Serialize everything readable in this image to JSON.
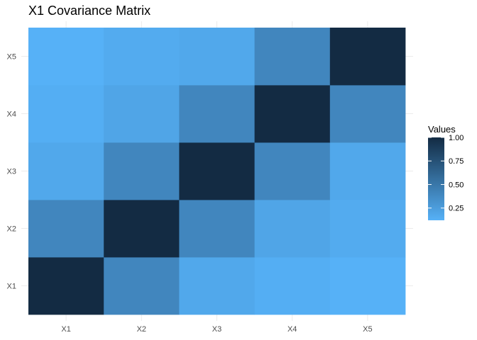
{
  "chart_data": {
    "type": "heatmap",
    "title": "X1 Covariance Matrix",
    "xlabel": "",
    "ylabel": "",
    "x_categories": [
      "X1",
      "X2",
      "X3",
      "X4",
      "X5"
    ],
    "y_categories": [
      "X1",
      "X2",
      "X3",
      "X4",
      "X5"
    ],
    "values": [
      [
        1.0,
        0.4,
        0.18,
        0.14,
        0.12
      ],
      [
        0.4,
        1.0,
        0.4,
        0.2,
        0.16
      ],
      [
        0.18,
        0.4,
        1.0,
        0.4,
        0.18
      ],
      [
        0.14,
        0.2,
        0.4,
        1.0,
        0.4
      ],
      [
        0.12,
        0.16,
        0.18,
        0.4,
        1.0
      ]
    ],
    "legend": {
      "title": "Values",
      "ticks": [
        "1.00",
        "0.75",
        "0.50",
        "0.25"
      ],
      "tick_values": [
        1.0,
        0.75,
        0.5,
        0.25
      ],
      "placement": "right"
    },
    "color_scale": {
      "low": "#56b1f7",
      "high": "#132b43",
      "min": 0.12,
      "max": 1.0
    },
    "grid": true,
    "background": "#ffffff",
    "grid_color": "#ebebeb"
  }
}
